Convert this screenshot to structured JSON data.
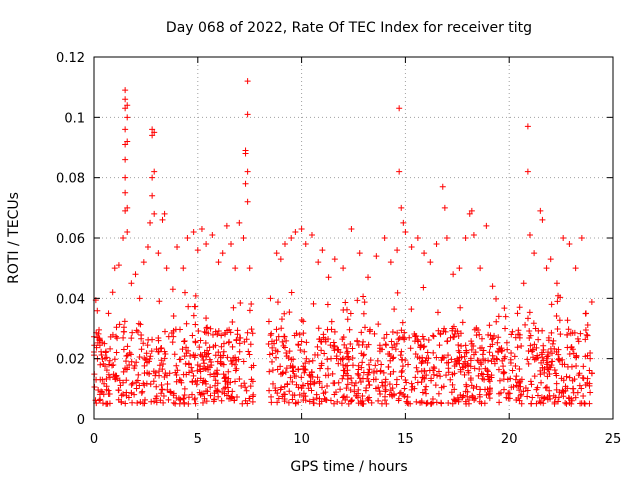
{
  "chart_data": {
    "type": "scatter",
    "title": "Day 068 of 2022, Rate Of TEC Index for receiver titg",
    "xlabel": "GPS time / hours",
    "ylabel": "ROTI / TECUs",
    "xlim": [
      0,
      25
    ],
    "ylim": [
      0,
      0.12
    ],
    "xticks": [
      0,
      5,
      10,
      15,
      20,
      25
    ],
    "yticks": [
      0,
      0.02,
      0.04,
      0.06,
      0.08,
      0.1,
      0.12
    ],
    "xtick_labels": [
      "0",
      "5",
      "10",
      "15",
      "20",
      "25"
    ],
    "ytick_labels": [
      "0",
      "0.02",
      "0.04",
      "0.06",
      "0.08",
      "0.1",
      "0.12"
    ],
    "grid": true,
    "marker": "+",
    "color": "#ff0000",
    "data_gap_hours": [
      7.7,
      8.4
    ],
    "series": [
      {
        "name": "ROTI",
        "points": [
          [
            0.1,
            0.013
          ],
          [
            0.3,
            0.018
          ],
          [
            0.5,
            0.025
          ],
          [
            0.7,
            0.035
          ],
          [
            0.9,
            0.042
          ],
          [
            1.0,
            0.05
          ],
          [
            1.2,
            0.051
          ],
          [
            1.4,
            0.06
          ],
          [
            1.5,
            0.069
          ],
          [
            1.5,
            0.075
          ],
          [
            1.5,
            0.08
          ],
          [
            1.5,
            0.086
          ],
          [
            1.5,
            0.091
          ],
          [
            1.5,
            0.096
          ],
          [
            1.5,
            0.103
          ],
          [
            1.5,
            0.106
          ],
          [
            1.5,
            0.109
          ],
          [
            1.6,
            0.104
          ],
          [
            1.6,
            0.1
          ],
          [
            1.6,
            0.092
          ],
          [
            1.6,
            0.07
          ],
          [
            1.6,
            0.062
          ],
          [
            1.8,
            0.045
          ],
          [
            2.0,
            0.048
          ],
          [
            2.2,
            0.04
          ],
          [
            2.4,
            0.052
          ],
          [
            2.6,
            0.057
          ],
          [
            2.7,
            0.065
          ],
          [
            2.8,
            0.074
          ],
          [
            2.8,
            0.08
          ],
          [
            2.8,
            0.094
          ],
          [
            2.8,
            0.096
          ],
          [
            2.9,
            0.095
          ],
          [
            2.9,
            0.082
          ],
          [
            2.9,
            0.068
          ],
          [
            3.1,
            0.055
          ],
          [
            3.3,
            0.066
          ],
          [
            3.4,
            0.068
          ],
          [
            3.5,
            0.05
          ],
          [
            3.8,
            0.043
          ],
          [
            4.0,
            0.057
          ],
          [
            4.3,
            0.05
          ],
          [
            4.5,
            0.06
          ],
          [
            4.8,
            0.062
          ],
          [
            5.0,
            0.056
          ],
          [
            5.2,
            0.063
          ],
          [
            5.4,
            0.058
          ],
          [
            5.7,
            0.061
          ],
          [
            6.0,
            0.052
          ],
          [
            6.2,
            0.055
          ],
          [
            6.4,
            0.064
          ],
          [
            6.6,
            0.058
          ],
          [
            6.8,
            0.05
          ],
          [
            7.0,
            0.065
          ],
          [
            7.2,
            0.06
          ],
          [
            7.3,
            0.088
          ],
          [
            7.3,
            0.089
          ],
          [
            7.3,
            0.078
          ],
          [
            7.4,
            0.101
          ],
          [
            7.4,
            0.112
          ],
          [
            7.4,
            0.082
          ],
          [
            7.4,
            0.072
          ],
          [
            7.5,
            0.05
          ],
          [
            8.5,
            0.04
          ],
          [
            8.8,
            0.055
          ],
          [
            9.0,
            0.053
          ],
          [
            9.2,
            0.058
          ],
          [
            9.5,
            0.06
          ],
          [
            9.7,
            0.062
          ],
          [
            10.0,
            0.063
          ],
          [
            10.2,
            0.058
          ],
          [
            10.5,
            0.061
          ],
          [
            10.8,
            0.052
          ],
          [
            11.0,
            0.056
          ],
          [
            11.3,
            0.047
          ],
          [
            11.6,
            0.053
          ],
          [
            12.0,
            0.05
          ],
          [
            12.4,
            0.063
          ],
          [
            12.8,
            0.055
          ],
          [
            13.2,
            0.047
          ],
          [
            13.6,
            0.054
          ],
          [
            14.0,
            0.06
          ],
          [
            14.3,
            0.052
          ],
          [
            14.6,
            0.056
          ],
          [
            14.7,
            0.103
          ],
          [
            14.7,
            0.082
          ],
          [
            14.8,
            0.07
          ],
          [
            14.9,
            0.065
          ],
          [
            15.0,
            0.062
          ],
          [
            15.3,
            0.057
          ],
          [
            15.6,
            0.06
          ],
          [
            15.9,
            0.055
          ],
          [
            16.2,
            0.052
          ],
          [
            16.5,
            0.058
          ],
          [
            16.8,
            0.077
          ],
          [
            16.9,
            0.07
          ],
          [
            17.0,
            0.06
          ],
          [
            17.3,
            0.048
          ],
          [
            17.6,
            0.05
          ],
          [
            17.9,
            0.06
          ],
          [
            18.1,
            0.068
          ],
          [
            18.2,
            0.069
          ],
          [
            18.3,
            0.061
          ],
          [
            18.6,
            0.05
          ],
          [
            18.9,
            0.064
          ],
          [
            19.2,
            0.044
          ],
          [
            19.5,
            0.034
          ],
          [
            19.8,
            0.03
          ],
          [
            20.1,
            0.028
          ],
          [
            20.4,
            0.035
          ],
          [
            20.7,
            0.045
          ],
          [
            20.9,
            0.097
          ],
          [
            20.9,
            0.082
          ],
          [
            21.0,
            0.061
          ],
          [
            21.2,
            0.055
          ],
          [
            21.5,
            0.069
          ],
          [
            21.6,
            0.066
          ],
          [
            21.8,
            0.05
          ],
          [
            22.0,
            0.053
          ],
          [
            22.3,
            0.045
          ],
          [
            22.6,
            0.06
          ],
          [
            22.9,
            0.058
          ],
          [
            23.2,
            0.05
          ],
          [
            23.5,
            0.06
          ],
          [
            23.7,
            0.035
          ],
          [
            23.9,
            0.02
          ]
        ],
        "dense_band": {
          "segments": [
            {
              "x_from": 0.0,
              "x_to": 7.7,
              "y_from": 0.005,
              "y_to": 0.03
            },
            {
              "x_from": 8.4,
              "x_to": 24.0,
              "y_from": 0.005,
              "y_to": 0.03
            }
          ],
          "approx_points": 1400
        }
      }
    ]
  }
}
